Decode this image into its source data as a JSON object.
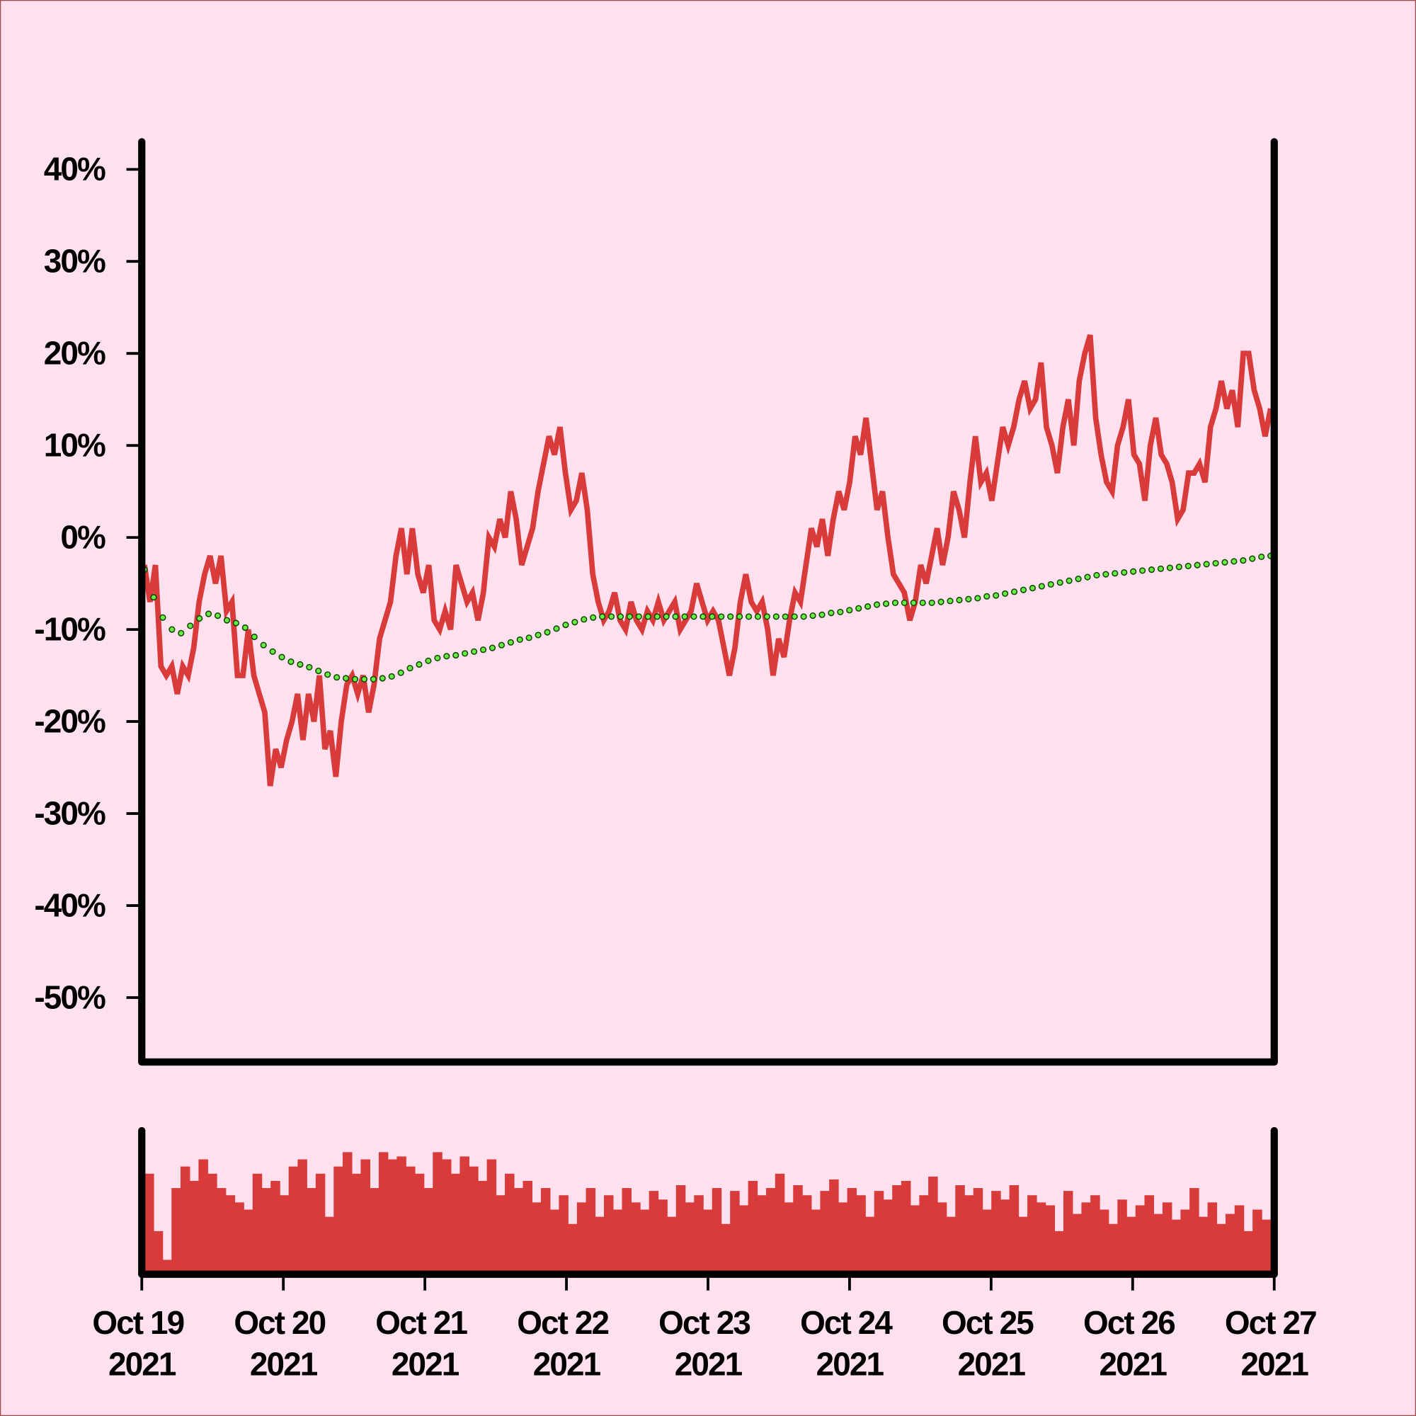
{
  "chart_data": [
    {
      "type": "line",
      "xlim": [
        "2021-10-19",
        "2021-10-27"
      ],
      "ylim": [
        -57,
        43
      ],
      "yticks": [
        {
          "value": 40,
          "label": "40%"
        },
        {
          "value": 30,
          "label": "30%"
        },
        {
          "value": 20,
          "label": "20%"
        },
        {
          "value": 10,
          "label": "10%"
        },
        {
          "value": 0,
          "label": "0%"
        },
        {
          "value": -10,
          "label": "-10%"
        },
        {
          "value": -20,
          "label": "-20%"
        },
        {
          "value": -30,
          "label": "-30%"
        },
        {
          "value": -40,
          "label": "-40%"
        },
        {
          "value": -50,
          "label": "-50%"
        }
      ],
      "series": [
        {
          "style": "line",
          "color": "#d93a3a",
          "values": [
            -3,
            -7,
            -3,
            -14,
            -15,
            -14,
            -17,
            -14,
            -15,
            -12,
            -7,
            -4,
            -2,
            -5,
            -2,
            -8,
            -7,
            -15,
            -15,
            -10,
            -15,
            -17,
            -19,
            -27,
            -23,
            -25,
            -22,
            -20,
            -17,
            -22,
            -17,
            -20,
            -15,
            -23,
            -21,
            -26,
            -20,
            -16,
            -15,
            -17,
            -15,
            -19,
            -16,
            -11,
            -9,
            -7,
            -2,
            1,
            -4,
            1,
            -4,
            -6,
            -3,
            -9,
            -10,
            -8,
            -10,
            -3,
            -5,
            -7,
            -6,
            -9,
            -6,
            0,
            -1,
            2,
            0,
            5,
            2,
            -3,
            -1,
            1,
            5,
            8,
            11,
            9,
            12,
            7,
            3,
            4,
            7,
            3,
            -4,
            -7,
            -9,
            -8,
            -6,
            -9,
            -10,
            -7,
            -9,
            -10,
            -8,
            -9,
            -7,
            -9,
            -8,
            -7,
            -10,
            -9,
            -8,
            -5,
            -7,
            -9,
            -8,
            -9,
            -12,
            -15,
            -12,
            -7,
            -4,
            -7,
            -8,
            -7,
            -10,
            -15,
            -11,
            -13,
            -9,
            -6,
            -7,
            -3,
            1,
            -1,
            2,
            -2,
            2,
            5,
            3,
            6,
            11,
            9,
            13,
            8,
            3,
            5,
            0,
            -4,
            -5,
            -6,
            -9,
            -7,
            -3,
            -5,
            -2,
            1,
            -3,
            0,
            5,
            3,
            0,
            6,
            11,
            6,
            7,
            4,
            8,
            12,
            10,
            12,
            15,
            17,
            14,
            15,
            19,
            12,
            10,
            7,
            12,
            15,
            10,
            17,
            20,
            22,
            13,
            9,
            6,
            5,
            10,
            12,
            15,
            9,
            8,
            4,
            10,
            13,
            9,
            8,
            6,
            2,
            3,
            7,
            7,
            8,
            6,
            12,
            14,
            17,
            14,
            16,
            12,
            20,
            20,
            16,
            14,
            11,
            14
          ]
        },
        {
          "style": "dots",
          "color": "#66ee44",
          "values": [
            -3.5,
            -6.5,
            -8.7,
            -10,
            -10.4,
            -9.6,
            -8.8,
            -8.3,
            -8.5,
            -9,
            -9.3,
            -9.8,
            -10.8,
            -11.7,
            -12.4,
            -13,
            -13.5,
            -13.8,
            -14.1,
            -14.5,
            -14.9,
            -15.2,
            -15.3,
            -15.4,
            -15.4,
            -15.4,
            -15.3,
            -15.1,
            -14.7,
            -14.2,
            -13.8,
            -13.4,
            -13.1,
            -12.9,
            -12.8,
            -12.6,
            -12.4,
            -12.2,
            -12,
            -11.7,
            -11.4,
            -11.1,
            -10.9,
            -10.6,
            -10.3,
            -9.9,
            -9.5,
            -9.2,
            -8.9,
            -8.7,
            -8.6,
            -8.6,
            -8.6,
            -8.6,
            -8.6,
            -8.6,
            -8.6,
            -8.6,
            -8.6,
            -8.6,
            -8.6,
            -8.6,
            -8.6,
            -8.6,
            -8.6,
            -8.6,
            -8.6,
            -8.6,
            -8.6,
            -8.6,
            -8.6,
            -8.6,
            -8.6,
            -8.5,
            -8.4,
            -8.2,
            -8.1,
            -7.9,
            -7.7,
            -7.5,
            -7.3,
            -7.2,
            -7.1,
            -7.1,
            -7.1,
            -7.1,
            -7.1,
            -7,
            -6.9,
            -6.8,
            -6.7,
            -6.6,
            -6.4,
            -6.3,
            -6.1,
            -5.9,
            -5.7,
            -5.5,
            -5.3,
            -5.1,
            -4.9,
            -4.7,
            -4.5,
            -4.3,
            -4.1,
            -4,
            -3.9,
            -3.8,
            -3.7,
            -3.6,
            -3.5,
            -3.4,
            -3.3,
            -3.2,
            -3.1,
            -3,
            -2.9,
            -2.8,
            -2.7,
            -2.6,
            -2.5,
            -2.3,
            -2.1,
            -2
          ]
        }
      ]
    },
    {
      "type": "bar",
      "xlim": [
        "2021-10-19",
        "2021-10-27"
      ],
      "xticks": [
        {
          "value": "2021-10-19",
          "label": "Oct 19 2021"
        },
        {
          "value": "2021-10-20",
          "label": "Oct 20 2021"
        },
        {
          "value": "2021-10-21",
          "label": "Oct 21 2021"
        },
        {
          "value": "2021-10-22",
          "label": "Oct 22 2021"
        },
        {
          "value": "2021-10-23",
          "label": "Oct 23 2021"
        },
        {
          "value": "2021-10-24",
          "label": "Oct 24 2021"
        },
        {
          "value": "2021-10-25",
          "label": "Oct 25 2021"
        },
        {
          "value": "2021-10-26",
          "label": "Oct 26 2021"
        },
        {
          "value": "2021-10-27",
          "label": "Oct 27 2021"
        }
      ],
      "ylim": [
        0,
        100
      ],
      "color": "#d93a3a",
      "values": [
        70,
        30,
        10,
        60,
        75,
        65,
        80,
        70,
        60,
        55,
        50,
        45,
        70,
        60,
        65,
        55,
        75,
        80,
        60,
        70,
        40,
        75,
        85,
        70,
        80,
        60,
        85,
        80,
        82,
        75,
        70,
        60,
        85,
        80,
        70,
        82,
        75,
        65,
        80,
        55,
        70,
        60,
        65,
        50,
        60,
        45,
        55,
        35,
        50,
        60,
        40,
        55,
        45,
        60,
        50,
        45,
        58,
        52,
        40,
        62,
        50,
        55,
        45,
        60,
        35,
        58,
        48,
        65,
        55,
        60,
        70,
        50,
        62,
        55,
        45,
        58,
        66,
        50,
        60,
        55,
        40,
        58,
        52,
        62,
        65,
        48,
        55,
        68,
        50,
        40,
        62,
        55,
        60,
        45,
        58,
        52,
        62,
        40,
        55,
        50,
        48,
        30,
        58,
        42,
        50,
        55,
        45,
        35,
        52,
        40,
        48,
        55,
        42,
        50,
        38,
        45,
        60,
        40,
        50,
        35,
        42,
        48,
        30,
        45,
        38
      ]
    }
  ]
}
